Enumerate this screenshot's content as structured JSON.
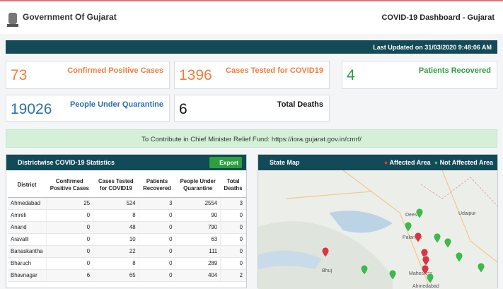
{
  "header": {
    "title": "Government Of Gujarat",
    "dashboard_title": "COVID-19 Dashboard - Gujarat"
  },
  "last_updated": "Last Updated on 31/03/2020 9:48:06 AM",
  "stats": [
    {
      "value": 73,
      "label": "Confirmed Positive Cases",
      "color": "#f47c3c"
    },
    {
      "value": 1396,
      "label": "Cases Tested for COVID19",
      "color": "#f47c3c"
    },
    {
      "value": 4,
      "label": "Patients Recovered",
      "color": "#2e9e3e"
    },
    {
      "value": 19026,
      "label": "People Under Quarantine",
      "color": "#2a70b0"
    },
    {
      "value": 6,
      "label": "Total Deaths",
      "color": "#111111"
    }
  ],
  "relief_fund": "To Contribute in Chief Minister Relief Fund: https://iora.gujarat.gov.in/cmrf/",
  "district_panel": {
    "title": "Districtwise COVID-19 Statistics",
    "export": "Export",
    "columns": [
      "District",
      "Confirmed Positive Cases",
      "Cases Tested for COVID19",
      "Patients Recovered",
      "People Under Quarantine",
      "Total Deaths"
    ],
    "rows": [
      [
        "Ahmedabad",
        25,
        524,
        3,
        2554,
        3
      ],
      [
        "Amreli",
        0,
        8,
        0,
        90,
        0
      ],
      [
        "Anand",
        0,
        48,
        0,
        790,
        0
      ],
      [
        "Aravalli",
        0,
        10,
        0,
        63,
        0
      ],
      [
        "Banaskantha",
        0,
        22,
        0,
        111,
        0
      ],
      [
        "Bharuch",
        0,
        8,
        0,
        289,
        0
      ],
      [
        "Bhavnagar",
        6,
        65,
        0,
        404,
        2
      ]
    ]
  },
  "map_panel": {
    "title": "State Map",
    "legend": [
      "Affected Area",
      "Not Affected Area"
    ],
    "places": [
      "Udaipur",
      "Deesa",
      "Palanpur",
      "Mahesana",
      "Ahmedabad",
      "Bhuj"
    ]
  }
}
